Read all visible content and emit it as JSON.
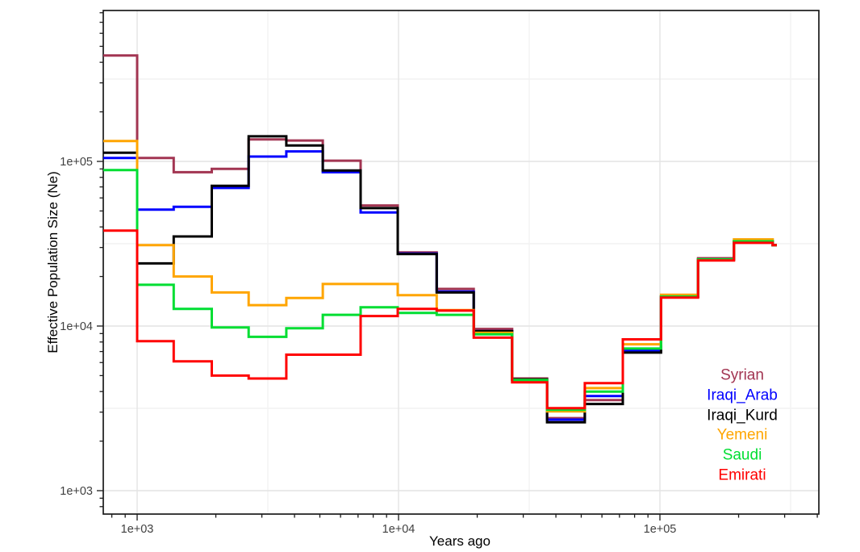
{
  "chart_data": {
    "type": "line",
    "style": "step-post-log-log",
    "title": "",
    "xlabel": "Years ago",
    "ylabel": "Effective Population Size (Ne)",
    "xlim": [
      740,
      405000
    ],
    "ylim": [
      720,
      826000
    ],
    "grid": "major and minor, light gray, on white panel",
    "legend_position": "inside lower-right, colored text labels only",
    "x_ticks": [
      {
        "label": "1e+03",
        "value": 1000
      },
      {
        "label": "1e+04",
        "value": 10000
      },
      {
        "label": "1e+05",
        "value": 100000
      }
    ],
    "y_ticks": [
      {
        "label": "1e+03",
        "value": 1000
      },
      {
        "label": "1e+04",
        "value": 10000
      },
      {
        "label": "1e+05",
        "value": 100000
      }
    ],
    "x_boundaries_years": [
      740,
      1000,
      1380,
      1930,
      2670,
      3720,
      5130,
      7160,
      9930,
      14000,
      19400,
      27200,
      37000,
      51600,
      72100,
      101000,
      140000,
      192000,
      270000,
      280000
    ],
    "series": [
      {
        "name": "Syrian",
        "color": "#A23552",
        "values": [
          440000,
          105000,
          86000,
          90000,
          136000,
          134000,
          101000,
          54000,
          28000,
          16800,
          9600,
          4800,
          2760,
          3550,
          7100,
          15100,
          25800,
          32700,
          31000
        ]
      },
      {
        "name": "Iraqi_Arab",
        "color": "#0000FF",
        "values": [
          105000,
          51000,
          53000,
          69000,
          107000,
          115000,
          86000,
          49000,
          27600,
          16200,
          9300,
          4750,
          2700,
          3760,
          7100,
          15100,
          25400,
          32700,
          31000
        ]
      },
      {
        "name": "Iraqi_Kurd",
        "color": "#000000",
        "values": [
          113000,
          24000,
          35000,
          71000,
          142000,
          125000,
          88000,
          52000,
          27400,
          16000,
          9300,
          4750,
          2600,
          3360,
          6900,
          15100,
          25400,
          32700,
          31000
        ]
      },
      {
        "name": "Yemeni",
        "color": "#FFA500",
        "values": [
          133000,
          31000,
          20000,
          16000,
          13400,
          14800,
          18000,
          18000,
          15400,
          12500,
          9100,
          4700,
          3030,
          4200,
          7750,
          15500,
          25400,
          33600,
          31000
        ]
      },
      {
        "name": "Saudi",
        "color": "#00DE32",
        "values": [
          88500,
          17800,
          12700,
          9800,
          8600,
          9700,
          11700,
          13000,
          12000,
          11700,
          8900,
          4700,
          3100,
          4000,
          7300,
          15100,
          25400,
          32700,
          31000
        ]
      },
      {
        "name": "Emirati",
        "color": "#FF0000",
        "values": [
          38000,
          8100,
          6100,
          5000,
          4800,
          6700,
          6700,
          11500,
          12700,
          12400,
          8500,
          4550,
          3170,
          4500,
          8300,
          14900,
          25000,
          32000,
          31000
        ]
      }
    ],
    "colors": {
      "grid_major": "#E4E4E4",
      "grid_minor": "#F2F2F2",
      "axis": "#1A1A1A",
      "tick_label": "#404040"
    }
  }
}
